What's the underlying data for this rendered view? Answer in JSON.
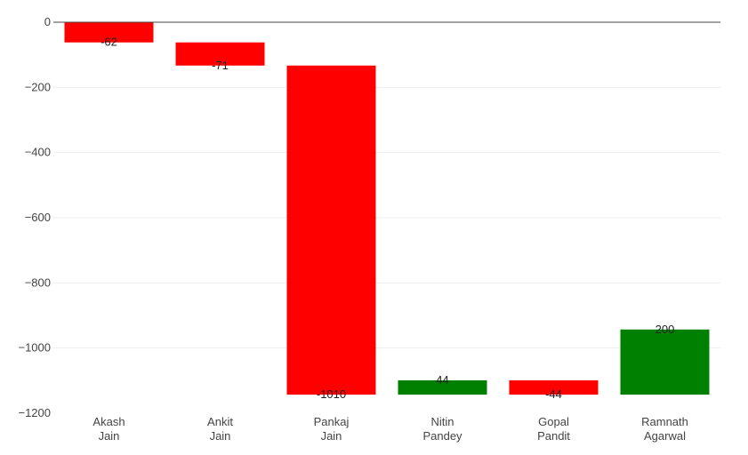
{
  "chart_data": {
    "type": "bar",
    "subtype": "waterfall",
    "categories": [
      [
        "Akash",
        "Jain"
      ],
      [
        "Ankit",
        "Jain"
      ],
      [
        "Pankaj",
        "Jain"
      ],
      [
        "Nitin",
        "Pandey"
      ],
      [
        "Gopal",
        "Pandit"
      ],
      [
        "Ramnath",
        "Agarwal"
      ]
    ],
    "values": [
      -62,
      -71,
      -1010,
      44,
      -44,
      200
    ],
    "data_labels": [
      "-62",
      "-71",
      "-1010",
      "44",
      "-44",
      "200"
    ],
    "ylim": [
      -1200,
      0
    ],
    "yticks": [
      0,
      -200,
      -400,
      -600,
      -800,
      -1000,
      -1200
    ],
    "ytick_labels": [
      "0",
      "−200",
      "−400",
      "−600",
      "−800",
      "−1000",
      "−1200"
    ],
    "grid": true,
    "title": "",
    "xlabel": "",
    "ylabel": "",
    "colors": {
      "increase": "#008000",
      "decrease": "#ff0000",
      "zero_line": "#444444",
      "grid": "#eeeeee"
    }
  }
}
